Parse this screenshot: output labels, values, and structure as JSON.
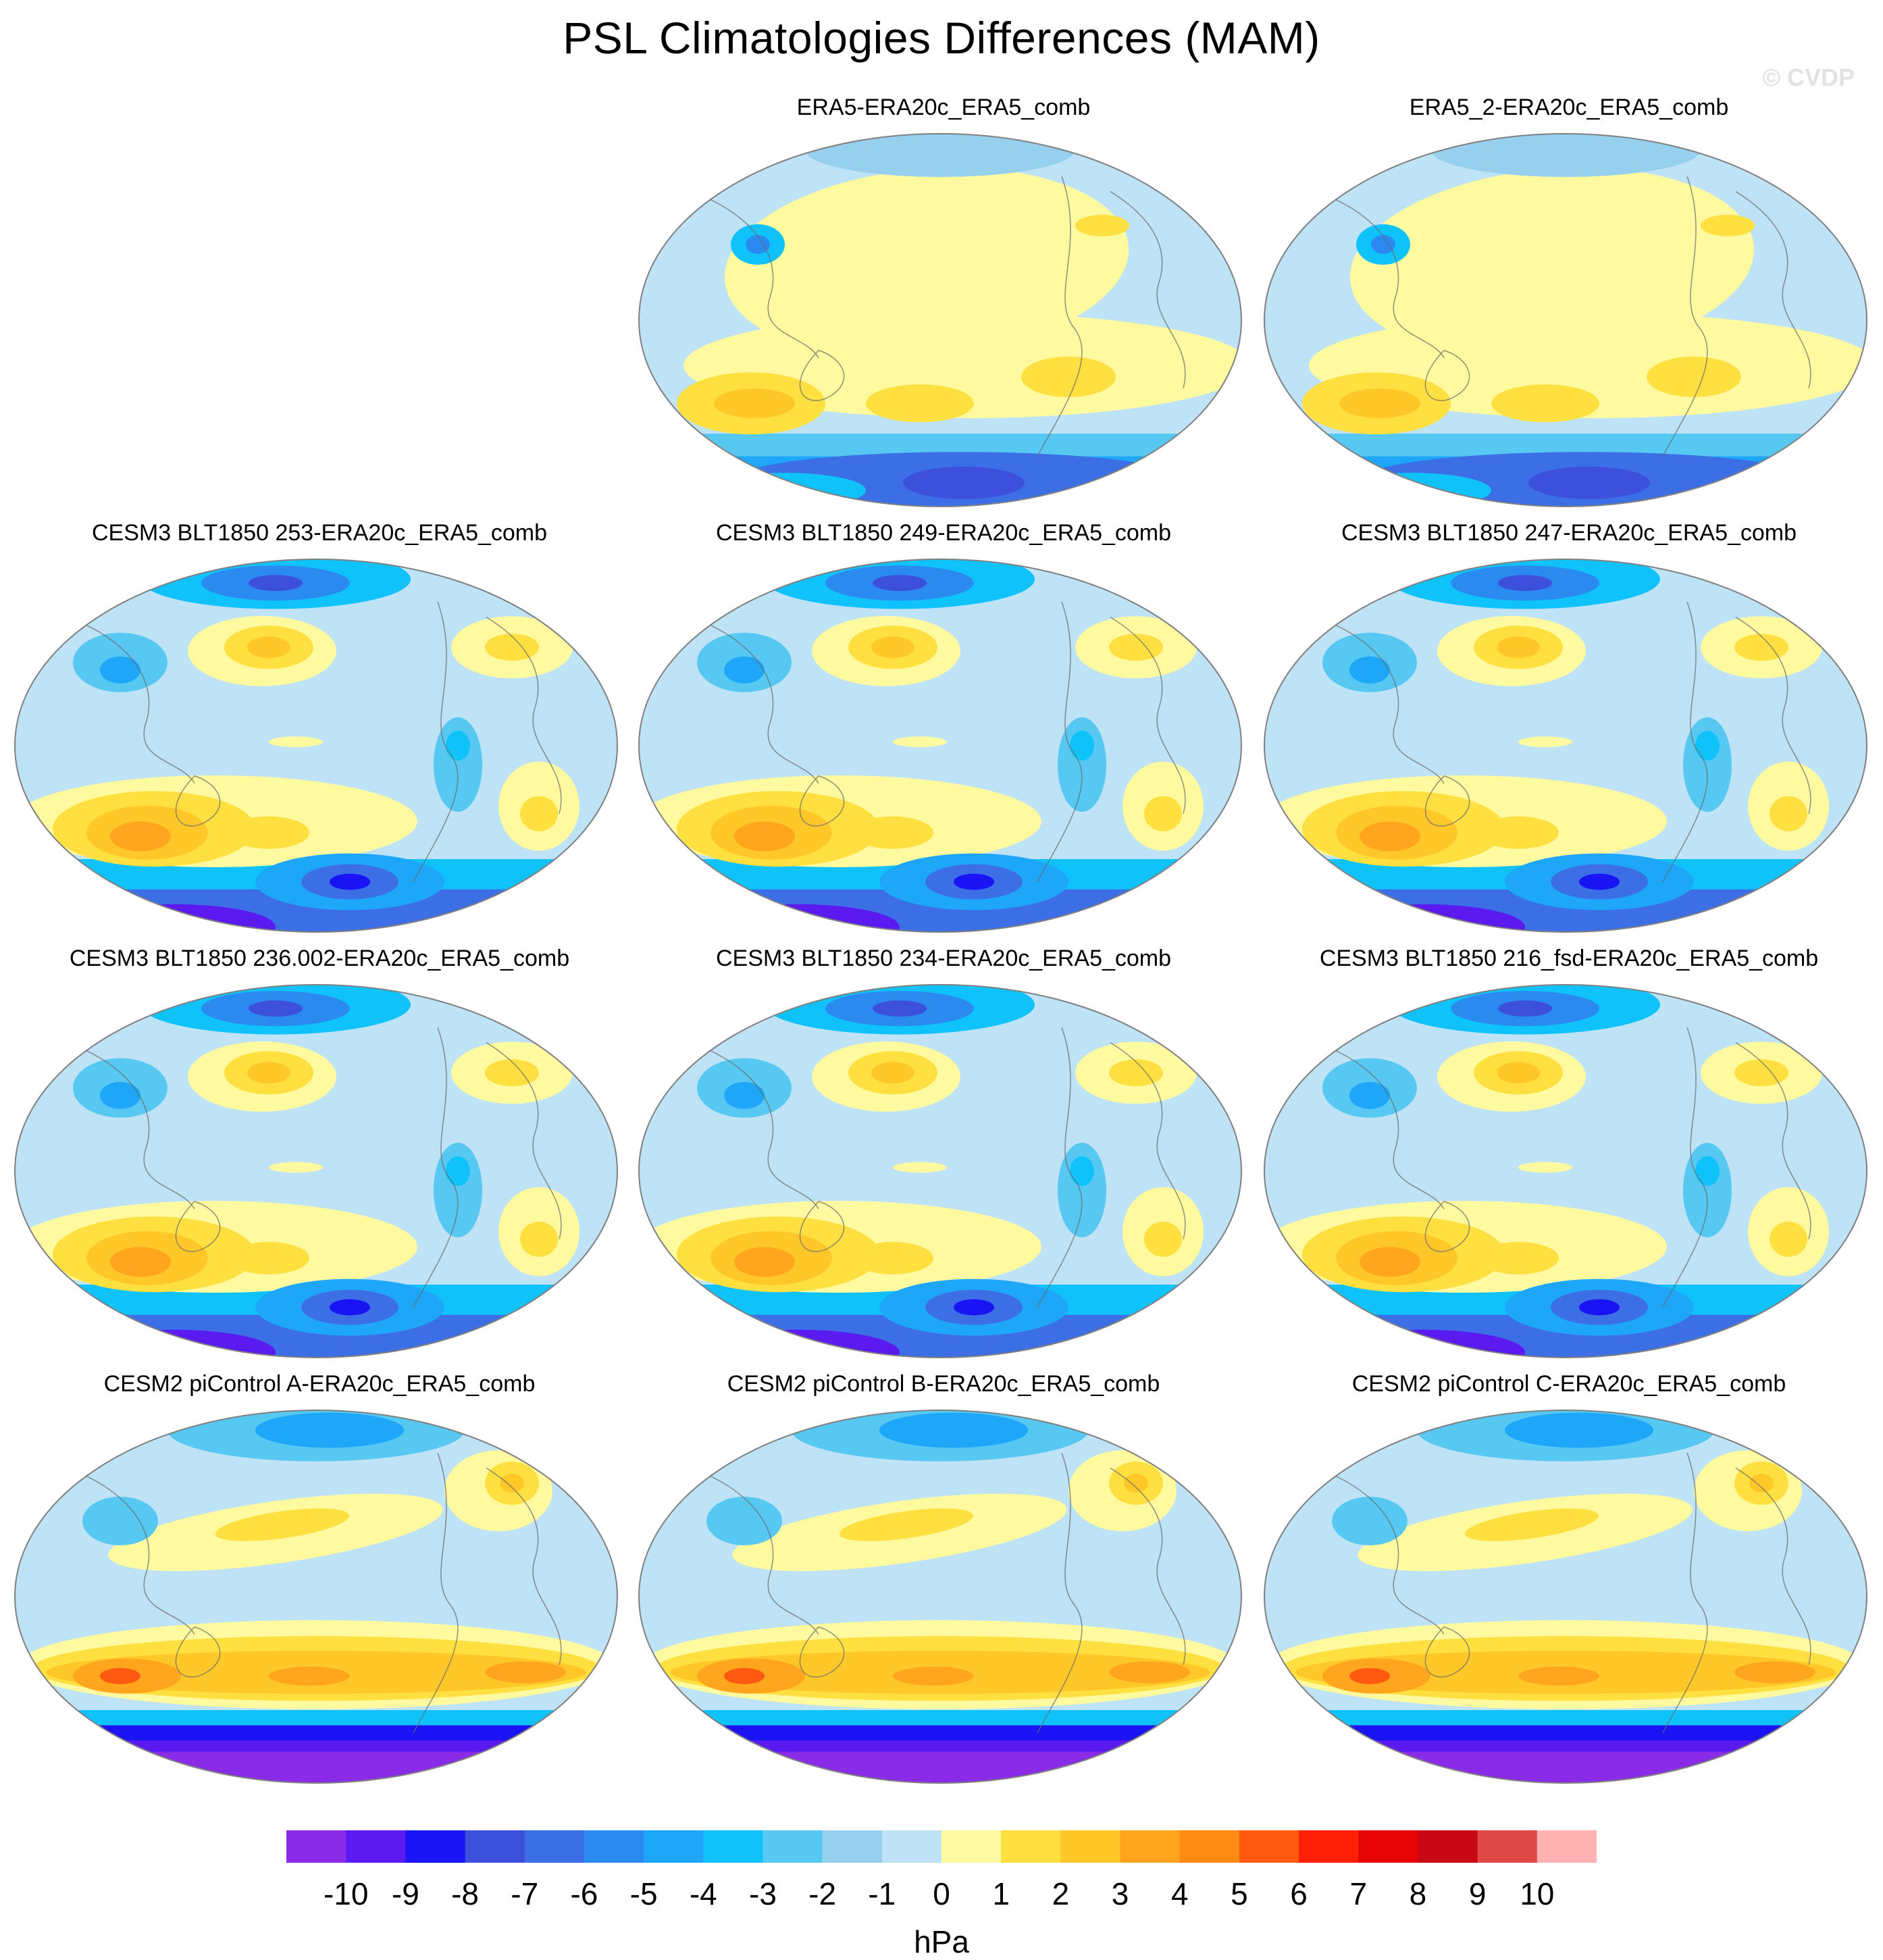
{
  "title": "PSL Climatologies Differences (MAM)",
  "watermark": "© CVDP",
  "chart_data": {
    "type": "heatmap",
    "projection": "robinson-like global map, Pacific-centered",
    "variable": "PSL",
    "season": "MAM",
    "panels": [
      {
        "id": "era5",
        "title": "ERA5-ERA20c_ERA5_comb",
        "row": 0,
        "col": 1,
        "style": "obs"
      },
      {
        "id": "era5_2",
        "title": "ERA5_2-ERA20c_ERA5_comb",
        "row": 0,
        "col": 2,
        "style": "obs"
      },
      {
        "id": "blt253",
        "title": "CESM3 BLT1850 253-ERA20c_ERA5_comb",
        "row": 1,
        "col": 0,
        "style": "cesm3"
      },
      {
        "id": "blt249",
        "title": "CESM3 BLT1850 249-ERA20c_ERA5_comb",
        "row": 1,
        "col": 1,
        "style": "cesm3"
      },
      {
        "id": "blt247",
        "title": "CESM3 BLT1850 247-ERA20c_ERA5_comb",
        "row": 1,
        "col": 2,
        "style": "cesm3"
      },
      {
        "id": "blt236",
        "title": "CESM3 BLT1850 236.002-ERA20c_ERA5_comb",
        "row": 2,
        "col": 0,
        "style": "cesm3"
      },
      {
        "id": "blt234",
        "title": "CESM3 BLT1850 234-ERA20c_ERA5_comb",
        "row": 2,
        "col": 1,
        "style": "cesm3"
      },
      {
        "id": "blt216",
        "title": "CESM3 BLT1850 216_fsd-ERA20c_ERA5_comb",
        "row": 2,
        "col": 2,
        "style": "cesm3"
      },
      {
        "id": "picA",
        "title": "CESM2 piControl A-ERA20c_ERA5_comb",
        "row": 3,
        "col": 0,
        "style": "cesm2"
      },
      {
        "id": "picB",
        "title": "CESM2 piControl B-ERA20c_ERA5_comb",
        "row": 3,
        "col": 1,
        "style": "cesm2"
      },
      {
        "id": "picC",
        "title": "CESM2 piControl C-ERA20c_ERA5_comb",
        "row": 3,
        "col": 2,
        "style": "cesm2"
      }
    ],
    "colorbar": {
      "unit": "hPa",
      "tick_labels": [
        "-10",
        "-9",
        "-8",
        "-7",
        "-6",
        "-5",
        "-4",
        "-3",
        "-2",
        "-1",
        "0",
        "1",
        "2",
        "3",
        "4",
        "5",
        "6",
        "7",
        "8",
        "9",
        "10"
      ],
      "colors": [
        "#8a2be8",
        "#5a1af0",
        "#1a14f4",
        "#3c50dc",
        "#3c6ee6",
        "#2a8af0",
        "#1ea6f8",
        "#10c2fa",
        "#56c8f2",
        "#96d0ee",
        "#bee2f6",
        "#fffaa0",
        "#ffe040",
        "#ffc828",
        "#ffa61e",
        "#ff8a14",
        "#ff5a10",
        "#ff200a",
        "#e60404",
        "#c80814",
        "#e04848",
        "#ffb4b4"
      ]
    }
  }
}
